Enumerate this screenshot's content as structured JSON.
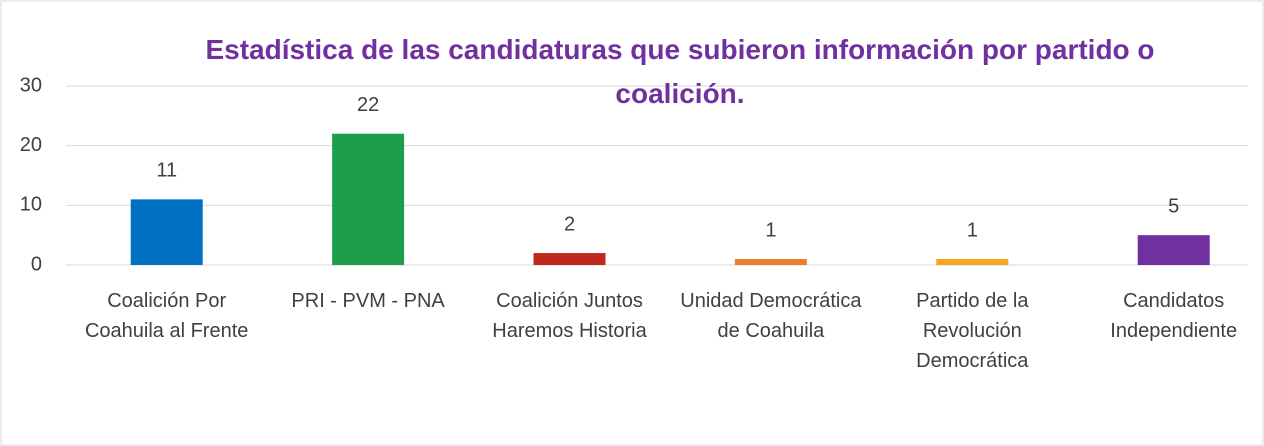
{
  "chart_data": {
    "type": "bar",
    "title": "Estadística de las candidaturas que subieron información por partido o coalición.",
    "categories": [
      "Coalición Por Coahuila al Frente",
      "PRI - PVM - PNA",
      "Coalición Juntos Haremos Historia",
      "Unidad Democrática de Coahuila",
      "Partido de la Revolución Democrática",
      "Candidatos Independiente"
    ],
    "values": [
      11,
      22,
      2,
      1,
      1,
      5
    ],
    "colors": [
      "#0070c0",
      "#1e9e4a",
      "#c0281b",
      "#ed7d31",
      "#f5a623",
      "#7030a0"
    ],
    "ylim": [
      0,
      30
    ],
    "yticks": [
      0,
      10,
      20,
      30
    ],
    "grid": true
  }
}
